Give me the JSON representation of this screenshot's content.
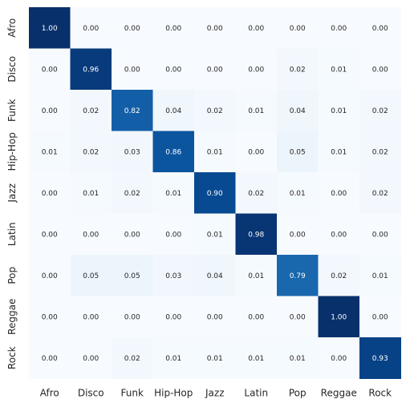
{
  "chart_data": {
    "type": "heatmap",
    "title": "",
    "xlabel": "",
    "ylabel": "",
    "x_labels": [
      "Afro",
      "Disco",
      "Funk",
      "Hip-Hop",
      "Jazz",
      "Latin",
      "Pop",
      "Reggae",
      "Rock"
    ],
    "y_labels": [
      "Afro",
      "Disco",
      "Funk",
      "Hip-Hop",
      "Jazz",
      "Latin",
      "Pop",
      "Reggae",
      "Rock"
    ],
    "values": [
      [
        1.0,
        0.0,
        0.0,
        0.0,
        0.0,
        0.0,
        0.0,
        0.0,
        0.0
      ],
      [
        0.0,
        0.96,
        0.0,
        0.0,
        0.0,
        0.0,
        0.02,
        0.01,
        0.0
      ],
      [
        0.0,
        0.02,
        0.82,
        0.04,
        0.02,
        0.01,
        0.04,
        0.01,
        0.02
      ],
      [
        0.01,
        0.02,
        0.03,
        0.86,
        0.01,
        0.0,
        0.05,
        0.01,
        0.02
      ],
      [
        0.0,
        0.01,
        0.02,
        0.01,
        0.9,
        0.02,
        0.01,
        0.0,
        0.02
      ],
      [
        0.0,
        0.0,
        0.0,
        0.0,
        0.01,
        0.98,
        0.0,
        0.0,
        0.0
      ],
      [
        0.0,
        0.05,
        0.05,
        0.03,
        0.04,
        0.01,
        0.79,
        0.02,
        0.01
      ],
      [
        0.0,
        0.0,
        0.0,
        0.0,
        0.0,
        0.0,
        0.0,
        1.0,
        0.0
      ],
      [
        0.0,
        0.0,
        0.02,
        0.01,
        0.01,
        0.01,
        0.01,
        0.0,
        0.93
      ]
    ],
    "value_range": [
      0,
      1
    ],
    "colormap": "Blues",
    "annotations": "cell values shown with two decimals",
    "colorbar": false,
    "grid": false,
    "legend": "none"
  }
}
